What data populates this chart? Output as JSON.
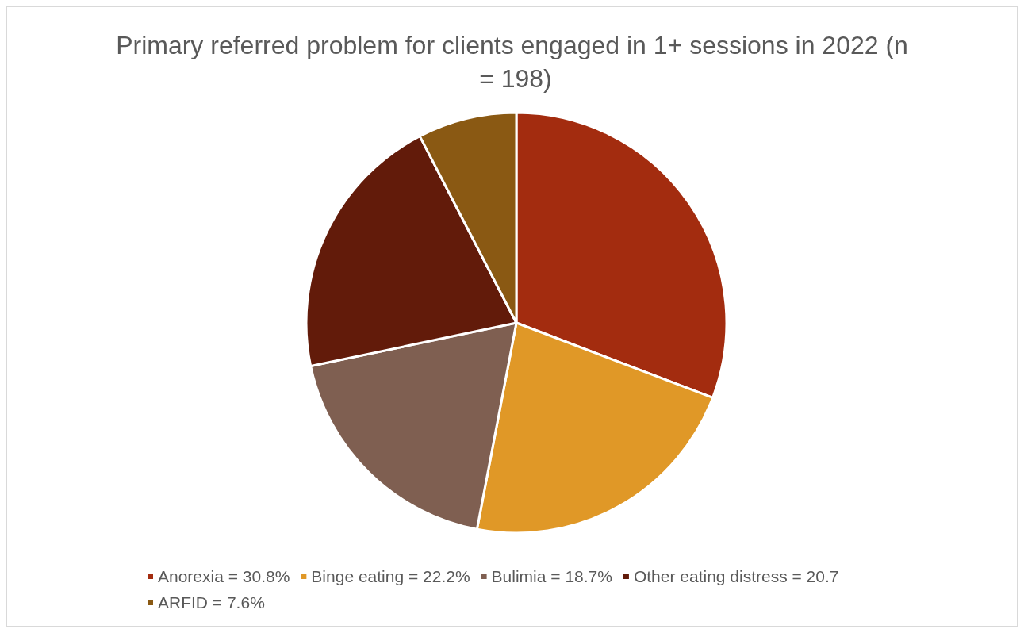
{
  "chart_data": {
    "type": "pie",
    "title": "Primary referred problem for clients engaged in 1+ sessions in 2022 (n = 198)",
    "categories": [
      "Anorexia = 30.8%",
      "Binge eating = 22.2%",
      "Bulimia = 18.7%",
      "Other eating distress = 20.7",
      "ARFID = 7.6%"
    ],
    "values": [
      30.8,
      22.2,
      18.7,
      20.7,
      7.6
    ],
    "colors": [
      "#a32c0f",
      "#e09827",
      "#7f5f51",
      "#621b0a",
      "#8a5913"
    ],
    "legend": "bottom"
  }
}
